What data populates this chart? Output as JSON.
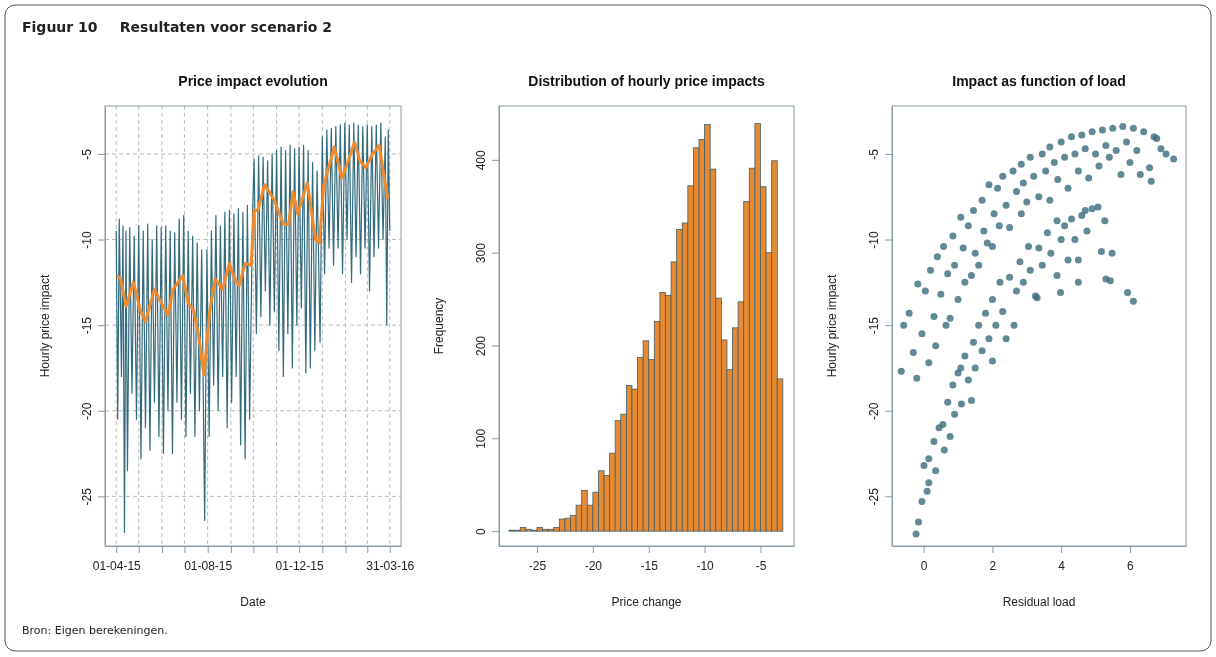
{
  "chart_data": [
    {
      "type": "line",
      "title": "Price impact evolution",
      "xlabel": "Date",
      "ylabel": "Hourly price impact",
      "xlim": [
        "2015-03-17",
        "2016-04-15"
      ],
      "ylim": [
        -27.9,
        -2.2
      ],
      "xticks": [
        {
          "value": "2015-04-01",
          "label": "01-04-15"
        },
        {
          "value": "2015-05-01",
          "label": null
        },
        {
          "value": "2015-06-01",
          "label": null
        },
        {
          "value": "2015-07-01",
          "label": null
        },
        {
          "value": "2015-08-01",
          "label": "01-08-15"
        },
        {
          "value": "2015-09-01",
          "label": null
        },
        {
          "value": "2015-10-01",
          "label": null
        },
        {
          "value": "2015-11-01",
          "label": null
        },
        {
          "value": "2015-12-01",
          "label": "01-12-15"
        },
        {
          "value": "2016-01-01",
          "label": null
        },
        {
          "value": "2016-02-01",
          "label": null
        },
        {
          "value": "2016-03-01",
          "label": null
        },
        {
          "value": "2016-03-31",
          "label": "31-03-16"
        }
      ],
      "yticks": [
        -25,
        -20,
        -15,
        -10,
        -5
      ],
      "grid": true,
      "annotations": [
        "Figuur 10",
        "Resultaten voor scenario 2",
        "Bron: Eigen berekeningen."
      ],
      "series": [
        {
          "color": "#336b7e",
          "x": [
            "2015-04-01",
            "2015-04-03",
            "2015-04-05",
            "2015-04-08",
            "2015-04-10",
            "2015-04-12",
            "2015-04-14",
            "2015-04-16",
            "2015-04-19",
            "2015-04-22",
            "2015-04-25",
            "2015-04-28",
            "2015-05-01",
            "2015-05-04",
            "2015-05-07",
            "2015-05-10",
            "2015-05-13",
            "2015-05-16",
            "2015-05-19",
            "2015-05-22",
            "2015-05-25",
            "2015-05-28",
            "2015-05-31",
            "2015-06-03",
            "2015-06-06",
            "2015-06-09",
            "2015-06-12",
            "2015-06-15",
            "2015-06-18",
            "2015-06-21",
            "2015-06-24",
            "2015-06-27",
            "2015-06-30",
            "2015-07-03",
            "2015-07-06",
            "2015-07-09",
            "2015-07-12",
            "2015-07-15",
            "2015-07-18",
            "2015-07-21",
            "2015-07-24",
            "2015-07-28",
            "2015-07-31",
            "2015-08-03",
            "2015-08-06",
            "2015-08-09",
            "2015-08-12",
            "2015-08-15",
            "2015-08-18",
            "2015-08-21",
            "2015-08-24",
            "2015-08-27",
            "2015-08-30",
            "2015-09-02",
            "2015-09-05",
            "2015-09-08",
            "2015-09-11",
            "2015-09-14",
            "2015-09-17",
            "2015-09-20",
            "2015-09-23",
            "2015-09-26",
            "2015-09-30",
            "2015-10-02",
            "2015-10-05",
            "2015-10-08",
            "2015-10-11",
            "2015-10-14",
            "2015-10-17",
            "2015-10-20",
            "2015-10-23",
            "2015-10-26",
            "2015-10-29",
            "2015-11-01",
            "2015-11-04",
            "2015-11-07",
            "2015-11-10",
            "2015-11-13",
            "2015-11-16",
            "2015-11-19",
            "2015-11-22",
            "2015-11-25",
            "2015-11-28",
            "2015-12-01",
            "2015-12-04",
            "2015-12-07",
            "2015-12-10",
            "2015-12-13",
            "2015-12-16",
            "2015-12-19",
            "2015-12-22",
            "2015-12-25",
            "2015-12-29",
            "2016-01-01",
            "2016-01-04",
            "2016-01-07",
            "2016-01-10",
            "2016-01-13",
            "2016-01-16",
            "2016-01-19",
            "2016-01-22",
            "2016-01-25",
            "2016-01-28",
            "2016-01-31",
            "2016-02-03",
            "2016-02-06",
            "2016-02-09",
            "2016-02-12",
            "2016-02-15",
            "2016-02-18",
            "2016-02-21",
            "2016-02-24",
            "2016-02-27",
            "2016-03-01",
            "2016-03-04",
            "2016-03-07",
            "2016-03-10",
            "2016-03-13",
            "2016-03-16",
            "2016-03-19",
            "2016-03-22",
            "2016-03-25",
            "2016-03-27",
            "2016-03-29",
            "2016-03-31"
          ],
          "values": [
            -9.5,
            -20.5,
            -8.8,
            -18,
            -9.2,
            -27.1,
            -9.5,
            -23.5,
            -9.3,
            -19,
            -9.8,
            -20.5,
            -9.2,
            -22.8,
            -9.5,
            -21,
            -9.1,
            -22.3,
            -10,
            -19.5,
            -9.2,
            -21.5,
            -9.3,
            -22.5,
            -9.2,
            -20,
            -9.5,
            -22.5,
            -9.6,
            -19.5,
            -8.8,
            -20.5,
            -8.6,
            -21.5,
            -9.5,
            -19,
            -9.8,
            -21.5,
            -10.2,
            -20,
            -10.6,
            -26.4,
            -10.6,
            -21.5,
            -9.5,
            -18.5,
            -8.6,
            -20,
            -9.2,
            -18,
            -8.4,
            -21,
            -8.3,
            -19.5,
            -8.5,
            -18,
            -8.2,
            -22,
            -8.4,
            -22.8,
            -8,
            -20.5,
            -8.3,
            -5.3,
            -15.5,
            -5.1,
            -14.5,
            -5.2,
            -13,
            -5.4,
            -15,
            -5,
            -14.2,
            -4.8,
            -16.5,
            -4.6,
            -18,
            -4.8,
            -15.5,
            -4.5,
            -17.5,
            -4.7,
            -15,
            -4.6,
            -14,
            -4.5,
            -17.8,
            -4.8,
            -17.5,
            -5.5,
            -16.5,
            -6,
            -16,
            -4,
            -12,
            -3.6,
            -10.5,
            -3.5,
            -11.5,
            -3.4,
            -10.5,
            -3.3,
            -12,
            -3.2,
            -10,
            -3.3,
            -12.5,
            -3.2,
            -11,
            -3.3,
            -12,
            -3.4,
            -10.5,
            -3.3,
            -13,
            -3.4,
            -11,
            -3.3,
            -10.5,
            -3.2,
            -10,
            -4,
            -15,
            -3.6,
            -9.5
          ]
        },
        {
          "color": "#f08a2c",
          "x": [
            "2015-04-02",
            "2015-04-07",
            "2015-04-14",
            "2015-04-24",
            "2015-05-03",
            "2015-05-10",
            "2015-05-22",
            "2015-05-31",
            "2015-06-09",
            "2015-06-16",
            "2015-06-29",
            "2015-07-06",
            "2015-07-13",
            "2015-07-20",
            "2015-07-27",
            "2015-08-04",
            "2015-08-11",
            "2015-08-21",
            "2015-08-30",
            "2015-09-06",
            "2015-09-12",
            "2015-09-20",
            "2015-09-28",
            "2015-10-02",
            "2015-10-07",
            "2015-10-16",
            "2015-10-29",
            "2015-11-10",
            "2015-11-17",
            "2015-11-23",
            "2015-11-29",
            "2015-12-12",
            "2015-12-23",
            "2015-12-28",
            "2016-01-03",
            "2016-01-17",
            "2016-01-27",
            "2016-02-03",
            "2016-02-13",
            "2016-02-20",
            "2016-02-28",
            "2016-03-08",
            "2016-03-17",
            "2016-03-23",
            "2016-03-28"
          ],
          "values": [
            -12.1,
            -12.3,
            -13.9,
            -12.5,
            -14.1,
            -14.8,
            -12.9,
            -13.7,
            -14.4,
            -12.9,
            -12.1,
            -13.7,
            -14.1,
            -15.6,
            -17.9,
            -14.1,
            -12.3,
            -12.9,
            -11.4,
            -12.3,
            -12.7,
            -11.4,
            -11.5,
            -8.3,
            -8.3,
            -6.8,
            -7.7,
            -9.1,
            -9.1,
            -7.2,
            -8.5,
            -6.7,
            -10,
            -10.2,
            -6.8,
            -4.6,
            -6.4,
            -5.6,
            -4.3,
            -5.4,
            -5.8,
            -5,
            -4.5,
            -6.2,
            -7.6
          ]
        }
      ]
    },
    {
      "type": "histogram",
      "title": "Distribution of hourly price impacts",
      "xlabel": "Price change",
      "ylabel": "Frequency",
      "xlim": [
        -28.4,
        -2.0
      ],
      "ylim": [
        -16,
        458
      ],
      "xticks": [
        -25,
        -20,
        -15,
        -10,
        -5
      ],
      "yticks": [
        0,
        100,
        200,
        300,
        400
      ],
      "color": "#e8892f",
      "bins": [
        -27.5,
        -27,
        -26.5,
        -26,
        -25.5,
        -25,
        -24.5,
        -24,
        -23.5,
        -23,
        -22.5,
        -22,
        -21.5,
        -21,
        -20.5,
        -20,
        -19.5,
        -19,
        -18.5,
        -18,
        -17.5,
        -17,
        -16.5,
        -16,
        -15.5,
        -15,
        -14.5,
        -14,
        -13.5,
        -13,
        -12.5,
        -12,
        -11.5,
        -11,
        -10.5,
        -10,
        -9.5,
        -9,
        -8.5,
        -8,
        -7.5,
        -7,
        -6.5,
        -6,
        -5.5,
        -5,
        -4.5,
        -4,
        -3.5,
        -3
      ],
      "values": [
        1,
        1,
        4,
        2,
        1,
        4,
        2,
        2,
        4,
        13,
        14,
        17,
        28,
        44,
        28,
        42,
        65,
        60,
        84,
        119,
        126,
        157,
        153,
        187,
        205,
        185,
        226,
        257,
        254,
        290,
        325,
        332,
        372,
        413,
        422,
        438,
        390,
        251,
        206,
        174,
        219,
        247,
        355,
        391,
        439,
        371,
        300,
        399,
        164
      ]
    },
    {
      "type": "scatter",
      "title": "Impact as function of load",
      "xlabel": "Residual load",
      "ylabel": "Hourly price impact",
      "xlim": [
        -0.92,
        7.63
      ],
      "ylim": [
        -27.9,
        -2.2
      ],
      "xticks": [
        0,
        2,
        4,
        6
      ],
      "yticks": [
        -25,
        -20,
        -15,
        -10,
        -5
      ],
      "marker": "circle",
      "series": [
        {
          "color": "#3a6b7c",
          "x": [
            -0.65,
            -0.58,
            -0.42,
            -0.3,
            -0.2,
            -0.17,
            -0.05,
            0.05,
            0.15,
            0.2,
            0.3,
            0.35,
            0.4,
            0.5,
            0.58,
            0.65,
            0.7,
            0.77,
            0.85,
            0.9,
            1.0,
            1.08,
            1.15,
            1.2,
            1.3,
            1.39,
            1.45,
            1.5,
            1.6,
            1.7,
            1.75,
            1.85,
            1.9,
            2.0,
            2.05,
            2.15,
            2.2,
            2.3,
            2.4,
            2.5,
            2.6,
            2.7,
            2.84,
            2.84,
            2.9,
            3.0,
            3.1,
            3.2,
            3.35,
            3.45,
            3.55,
            3.67,
            3.67,
            3.8,
            3.9,
            4.0,
            4.1,
            4.2,
            4.3,
            4.4,
            4.5,
            4.6,
            4.7,
            4.8,
            4.9,
            5.0,
            5.1,
            5.2,
            5.3,
            5.4,
            5.5,
            5.6,
            5.74,
            5.79,
            5.9,
            6.0,
            6.1,
            6.2,
            6.3,
            6.4,
            6.57,
            6.62,
            6.7,
            6.78,
            6.9,
            7.05,
            7.27,
            -0.22,
            -0.15,
            -0.05,
            0.01,
            0.1,
            0.15,
            0.15,
            0.3,
            0.35,
            0.45,
            0.56,
            0.6,
            0.7,
            0.77,
            0.85,
            0.9,
            1.0,
            1.08,
            1.1,
            1.2,
            1.3,
            1.39,
            1.45,
            1.5,
            1.6,
            1.7,
            1.8,
            1.9,
            2.0,
            2.0,
            2.1,
            2.22,
            2.3,
            2.4,
            2.5,
            2.63,
            2.7,
            2.8,
            2.9,
            3.05,
            3.1,
            3.25,
            3.3,
            3.35,
            3.45,
            3.6,
            3.7,
            3.88,
            3.88,
            3.98,
            4.0,
            4.1,
            4.2,
            4.3,
            4.4,
            4.5,
            4.5,
            4.6,
            4.7,
            4.75,
            4.9,
            5.07,
            5.17,
            5.27,
            5.3,
            5.43,
            5.48,
            5.93,
            6.1
          ],
          "values": [
            -17.7,
            -15.0,
            -14.3,
            -16.6,
            -18.1,
            -12.6,
            -15.5,
            -13.0,
            -17.2,
            -11.8,
            -14.5,
            -16.2,
            -11.0,
            -13.2,
            -10.4,
            -15.0,
            -12.0,
            -14.6,
            -9.8,
            -11.5,
            -13.5,
            -8.7,
            -10.5,
            -12.5,
            -9.2,
            -12.1,
            -8.3,
            -10.8,
            -11.5,
            -7.7,
            -9.5,
            -10.2,
            -6.8,
            -10.4,
            -8.5,
            -7.0,
            -9.2,
            -6.3,
            -8.0,
            -9.3,
            -6.0,
            -7.2,
            -5.6,
            -8.5,
            -6.7,
            -7.8,
            -5.2,
            -6.3,
            -7.5,
            -5.0,
            -6.0,
            -4.6,
            -7.7,
            -5.5,
            -6.5,
            -4.3,
            -5.2,
            -7.0,
            -4.0,
            -5.0,
            -6.0,
            -3.9,
            -4.7,
            -6.4,
            -3.7,
            -5.0,
            -5.7,
            -3.6,
            -4.5,
            -5.2,
            -3.5,
            -4.8,
            -6.2,
            -3.4,
            -4.3,
            -5.5,
            -3.5,
            -4.8,
            -6.2,
            -3.7,
            -5.8,
            -6.6,
            -4.0,
            -4.1,
            -4.7,
            -5.0,
            -5.3,
            -27.2,
            -26.5,
            -25.3,
            -23.2,
            -24.7,
            -22.8,
            -24.2,
            -21.8,
            -23.5,
            -21.0,
            -20.8,
            -22.3,
            -19.5,
            -21.5,
            -18.5,
            -20.2,
            -17.8,
            -17.5,
            -19.6,
            -16.8,
            -18.2,
            -19.4,
            -16.0,
            -17.5,
            -15.0,
            -16.5,
            -14.3,
            -15.8,
            -17.1,
            -13.5,
            -15.0,
            -12.5,
            -14.2,
            -15.8,
            -12.2,
            -15.0,
            -13.0,
            -11.3,
            -12.5,
            -10.4,
            -11.8,
            -13.3,
            -13.4,
            -10.5,
            -11.5,
            -9.6,
            -10.8,
            -8.9,
            -12.1,
            -13.1,
            -10.0,
            -9.2,
            -11.2,
            -8.8,
            -10.0,
            -11.2,
            -12.5,
            -8.6,
            -8.3,
            -9.5,
            -8.2,
            -8.1,
            -10.7,
            -8.9,
            -12.3,
            -12.4,
            -10.8,
            -13.1,
            -13.6
          ]
        }
      ]
    }
  ]
}
